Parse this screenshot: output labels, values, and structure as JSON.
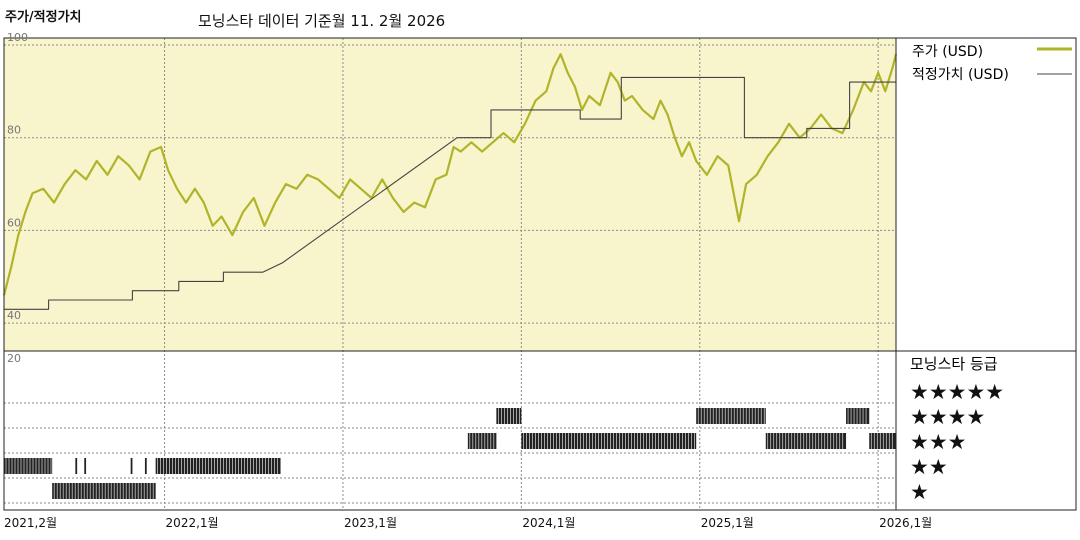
{
  "header": {
    "label": "주가/적정가치",
    "subtitle": "모닝스타 데이터 기준월 11. 2월 2026"
  },
  "colors": {
    "price": "#b1b42a",
    "fair": "#444444",
    "plot_bg": "#f8f4cc",
    "grid": "#8a8a8a",
    "bars": "#222222"
  },
  "legend": {
    "price_label": "주가 (USD)",
    "fair_label": "적정가치 (USD)",
    "rating_title": "모닝스타 등급"
  },
  "chart_data": {
    "type": "line",
    "y_ticks": [
      "100",
      "80",
      "60",
      "40",
      "20"
    ],
    "ylim": [
      20,
      100
    ],
    "xlim": [
      2021.1,
      2026.1
    ],
    "x_ticks": [
      {
        "t": 2021.1,
        "label": "2021,2월"
      },
      {
        "t": 2022.0,
        "label": "2022,1월"
      },
      {
        "t": 2023.0,
        "label": "2023,1월"
      },
      {
        "t": 2024.0,
        "label": "2024,1월"
      },
      {
        "t": 2025.0,
        "label": "2025,1월"
      },
      {
        "t": 2026.0,
        "label": "2026,1월"
      }
    ],
    "series": [
      {
        "name": "주가 (USD)",
        "points": [
          [
            2021.1,
            46
          ],
          [
            2021.14,
            52
          ],
          [
            2021.18,
            59
          ],
          [
            2021.22,
            64
          ],
          [
            2021.26,
            68
          ],
          [
            2021.32,
            69
          ],
          [
            2021.38,
            66
          ],
          [
            2021.44,
            70
          ],
          [
            2021.5,
            73
          ],
          [
            2021.56,
            71
          ],
          [
            2021.62,
            75
          ],
          [
            2021.68,
            72
          ],
          [
            2021.74,
            76
          ],
          [
            2021.8,
            74
          ],
          [
            2021.86,
            71
          ],
          [
            2021.92,
            77
          ],
          [
            2021.98,
            78
          ],
          [
            2022.02,
            73
          ],
          [
            2022.07,
            69
          ],
          [
            2022.12,
            66
          ],
          [
            2022.17,
            69
          ],
          [
            2022.22,
            66
          ],
          [
            2022.27,
            61
          ],
          [
            2022.32,
            63
          ],
          [
            2022.38,
            59
          ],
          [
            2022.44,
            64
          ],
          [
            2022.5,
            67
          ],
          [
            2022.56,
            61
          ],
          [
            2022.62,
            66
          ],
          [
            2022.68,
            70
          ],
          [
            2022.74,
            69
          ],
          [
            2022.8,
            72
          ],
          [
            2022.86,
            71
          ],
          [
            2022.92,
            69
          ],
          [
            2022.98,
            67
          ],
          [
            2023.04,
            71
          ],
          [
            2023.1,
            69
          ],
          [
            2023.16,
            67
          ],
          [
            2023.22,
            71
          ],
          [
            2023.28,
            67
          ],
          [
            2023.34,
            64
          ],
          [
            2023.4,
            66
          ],
          [
            2023.46,
            65
          ],
          [
            2023.52,
            71
          ],
          [
            2023.58,
            72
          ],
          [
            2023.62,
            78
          ],
          [
            2023.66,
            77
          ],
          [
            2023.72,
            79
          ],
          [
            2023.78,
            77
          ],
          [
            2023.84,
            79
          ],
          [
            2023.9,
            81
          ],
          [
            2023.96,
            79
          ],
          [
            2024.02,
            83
          ],
          [
            2024.08,
            88
          ],
          [
            2024.14,
            90
          ],
          [
            2024.18,
            95
          ],
          [
            2024.22,
            98
          ],
          [
            2024.26,
            94
          ],
          [
            2024.3,
            91
          ],
          [
            2024.34,
            86
          ],
          [
            2024.38,
            89
          ],
          [
            2024.44,
            87
          ],
          [
            2024.5,
            94
          ],
          [
            2024.54,
            92
          ],
          [
            2024.58,
            88
          ],
          [
            2024.62,
            89
          ],
          [
            2024.68,
            86
          ],
          [
            2024.74,
            84
          ],
          [
            2024.78,
            88
          ],
          [
            2024.82,
            85
          ],
          [
            2024.86,
            80
          ],
          [
            2024.9,
            76
          ],
          [
            2024.94,
            79
          ],
          [
            2024.98,
            75
          ],
          [
            2025.04,
            72
          ],
          [
            2025.1,
            76
          ],
          [
            2025.16,
            74
          ],
          [
            2025.22,
            62
          ],
          [
            2025.26,
            70
          ],
          [
            2025.32,
            72
          ],
          [
            2025.38,
            76
          ],
          [
            2025.44,
            79
          ],
          [
            2025.5,
            83
          ],
          [
            2025.56,
            80
          ],
          [
            2025.62,
            82
          ],
          [
            2025.68,
            85
          ],
          [
            2025.74,
            82
          ],
          [
            2025.8,
            81
          ],
          [
            2025.86,
            86
          ],
          [
            2025.92,
            92
          ],
          [
            2025.96,
            90
          ],
          [
            2026.0,
            94
          ],
          [
            2026.04,
            90
          ],
          [
            2026.08,
            95
          ],
          [
            2026.1,
            98
          ]
        ]
      },
      {
        "name": "적정가치 (USD)",
        "points": [
          [
            2021.1,
            43
          ],
          [
            2021.35,
            43
          ],
          [
            2021.35,
            45
          ],
          [
            2021.82,
            45
          ],
          [
            2021.82,
            47
          ],
          [
            2022.08,
            47
          ],
          [
            2022.08,
            49
          ],
          [
            2022.33,
            49
          ],
          [
            2022.33,
            51
          ],
          [
            2022.55,
            51
          ],
          [
            2022.66,
            53
          ],
          [
            2023.64,
            80
          ],
          [
            2023.83,
            80
          ],
          [
            2023.83,
            86
          ],
          [
            2024.33,
            86
          ],
          [
            2024.33,
            84
          ],
          [
            2024.56,
            84
          ],
          [
            2024.56,
            93
          ],
          [
            2025.25,
            93
          ],
          [
            2025.25,
            80
          ],
          [
            2025.6,
            80
          ],
          [
            2025.6,
            82
          ],
          [
            2025.84,
            82
          ],
          [
            2025.84,
            92
          ],
          [
            2026.1,
            92
          ]
        ]
      }
    ],
    "ratings": {
      "labels": [
        "★★★★★",
        "★★★★",
        "★★★",
        "★★",
        "★"
      ],
      "periods": [
        {
          "stars": 2,
          "from": 2021.1,
          "to": 2021.37
        },
        {
          "stars": 2,
          "from": 2021.5,
          "to": 2021.51
        },
        {
          "stars": 2,
          "from": 2021.55,
          "to": 2021.56
        },
        {
          "stars": 2,
          "from": 2021.81,
          "to": 2021.82
        },
        {
          "stars": 2,
          "from": 2021.89,
          "to": 2021.9
        },
        {
          "stars": 1,
          "from": 2021.37,
          "to": 2021.95
        },
        {
          "stars": 2,
          "from": 2021.95,
          "to": 2022.65
        },
        {
          "stars": 3,
          "from": 2023.7,
          "to": 2023.86
        },
        {
          "stars": 4,
          "from": 2023.86,
          "to": 2024.0
        },
        {
          "stars": 3,
          "from": 2024.0,
          "to": 2024.98
        },
        {
          "stars": 4,
          "from": 2024.98,
          "to": 2025.37
        },
        {
          "stars": 3,
          "from": 2025.37,
          "to": 2025.82
        },
        {
          "stars": 4,
          "from": 2025.82,
          "to": 2025.95
        },
        {
          "stars": 3,
          "from": 2025.95,
          "to": 2026.1
        }
      ]
    }
  }
}
